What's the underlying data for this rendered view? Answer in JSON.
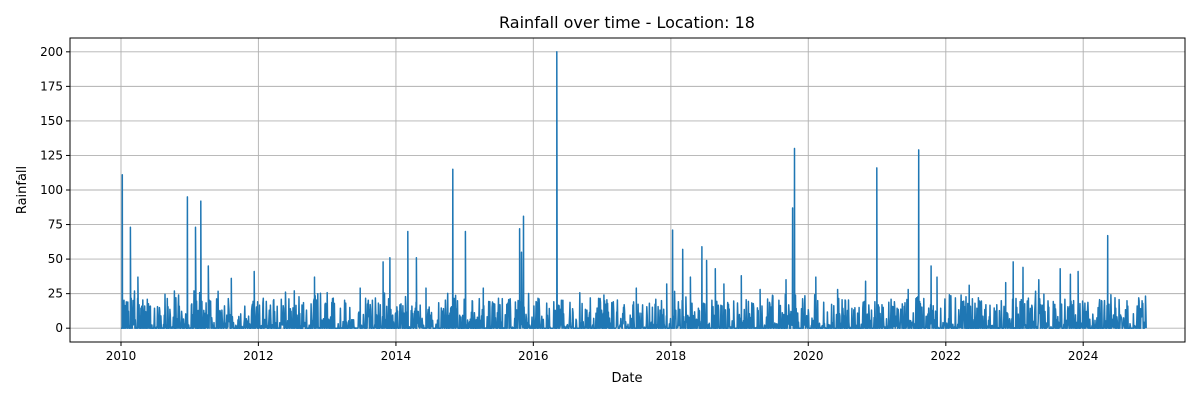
{
  "chart_data": {
    "type": "line",
    "title": "Rainfall over time - Location: 18",
    "xlabel": "Date",
    "ylabel": "Rainfall",
    "grid": true,
    "color": "#1f77b4",
    "xlim": [
      "2009-04-05",
      "2025-06-25"
    ],
    "ylim": [
      -10,
      210
    ],
    "xticks": [
      "2010",
      "2012",
      "2014",
      "2016",
      "2018",
      "2020",
      "2022",
      "2024"
    ],
    "yticks": [
      0,
      25,
      50,
      75,
      100,
      125,
      150,
      175,
      200
    ],
    "series": [
      {
        "values_note": "daily rainfall, mostly 0-20 with sparse spikes; notable peaks listed as date/value pairs",
        "peaks": [
          [
            "2010-01-08",
            111
          ],
          [
            "2010-02-20",
            73
          ],
          [
            "2010-04-01",
            37
          ],
          [
            "2010-12-20",
            95
          ],
          [
            "2011-02-01",
            73
          ],
          [
            "2011-03-01",
            92
          ],
          [
            "2011-04-10",
            45
          ],
          [
            "2011-08-10",
            36
          ],
          [
            "2011-12-10",
            41
          ],
          [
            "2012-07-10",
            27
          ],
          [
            "2012-10-25",
            37
          ],
          [
            "2013-06-25",
            29
          ],
          [
            "2013-10-25",
            48
          ],
          [
            "2013-11-30",
            51
          ],
          [
            "2014-03-05",
            70
          ],
          [
            "2014-04-20",
            51
          ],
          [
            "2014-06-10",
            29
          ],
          [
            "2014-10-30",
            115
          ],
          [
            "2015-01-05",
            70
          ],
          [
            "2015-04-10",
            29
          ],
          [
            "2015-10-20",
            72
          ],
          [
            "2015-10-30",
            55
          ],
          [
            "2015-11-10",
            81
          ],
          [
            "2016-05-05",
            200
          ],
          [
            "2017-01-10",
            24
          ],
          [
            "2017-07-01",
            29
          ],
          [
            "2017-12-10",
            32
          ],
          [
            "2018-01-10",
            71
          ],
          [
            "2018-03-05",
            57
          ],
          [
            "2018-04-15",
            37
          ],
          [
            "2018-06-15",
            59
          ],
          [
            "2018-07-10",
            49
          ],
          [
            "2018-08-25",
            43
          ],
          [
            "2018-10-10",
            32
          ],
          [
            "2019-01-10",
            38
          ],
          [
            "2019-04-20",
            28
          ],
          [
            "2019-09-05",
            35
          ],
          [
            "2019-10-10",
            87
          ],
          [
            "2019-10-20",
            130
          ],
          [
            "2020-02-10",
            37
          ],
          [
            "2020-06-05",
            28
          ],
          [
            "2020-11-01",
            34
          ],
          [
            "2020-12-30",
            116
          ],
          [
            "2021-06-15",
            28
          ],
          [
            "2021-08-10",
            129
          ],
          [
            "2021-10-15",
            45
          ],
          [
            "2021-11-15",
            37
          ],
          [
            "2022-05-05",
            31
          ],
          [
            "2022-11-15",
            33
          ],
          [
            "2022-12-25",
            48
          ],
          [
            "2023-02-15",
            44
          ],
          [
            "2023-05-10",
            35
          ],
          [
            "2023-09-01",
            43
          ],
          [
            "2023-10-25",
            39
          ],
          [
            "2023-12-05",
            41
          ],
          [
            "2024-05-10",
            67
          ],
          [
            "2024-08-25",
            16
          ]
        ]
      }
    ]
  }
}
